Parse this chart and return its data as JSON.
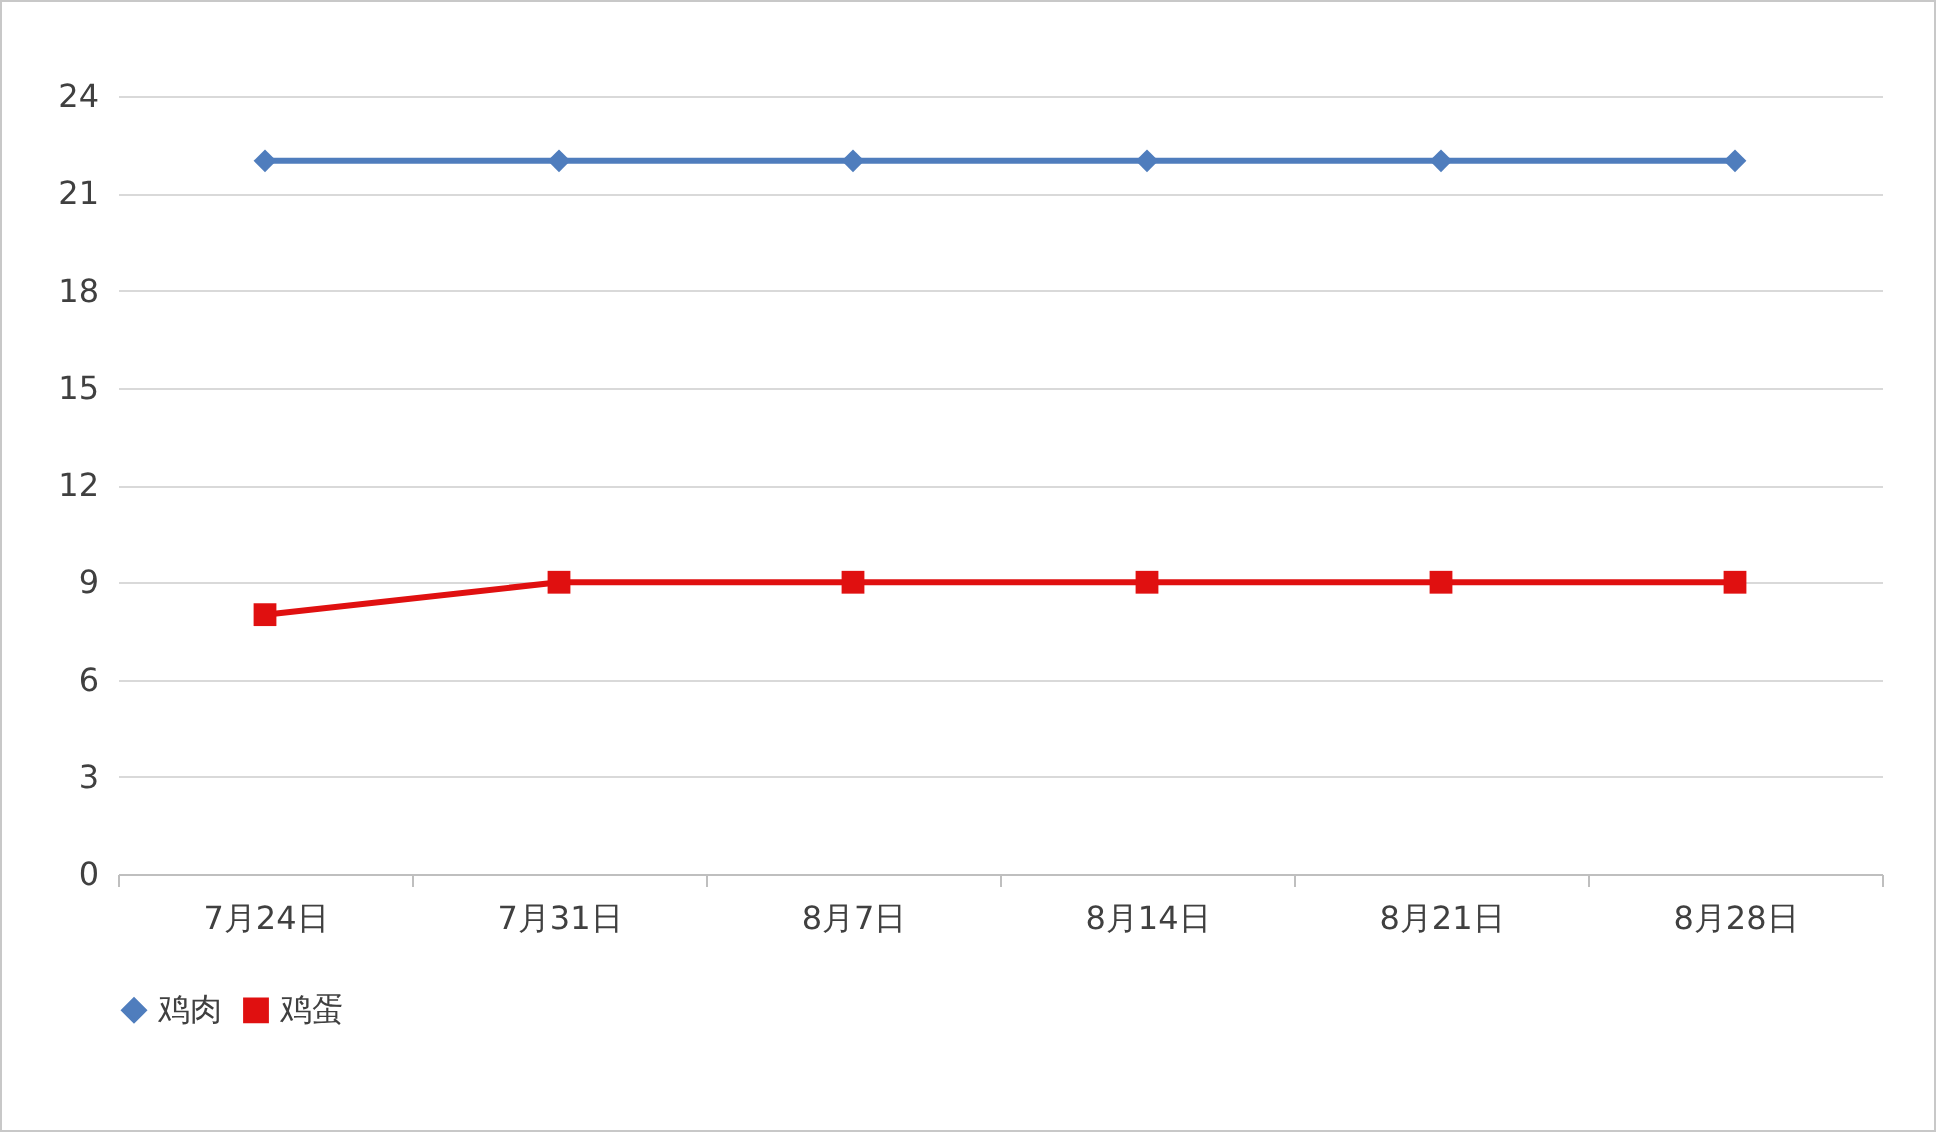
{
  "chart_data": {
    "type": "line",
    "categories": [
      "7月24日",
      "7月31日",
      "8月7日",
      "8月14日",
      "8月21日",
      "8月28日"
    ],
    "series": [
      {
        "name": "鸡肉",
        "color": "#4f7dbd",
        "marker": "diamond",
        "values": [
          22,
          22,
          22,
          22,
          22,
          22
        ]
      },
      {
        "name": "鸡蛋",
        "color": "#e01010",
        "marker": "square",
        "values": [
          8,
          9,
          9,
          9,
          9,
          9
        ]
      }
    ],
    "ylim": [
      0,
      24
    ],
    "yticks": [
      0,
      3,
      6,
      9,
      12,
      15,
      18,
      21,
      24
    ],
    "grid": "y",
    "legend": "bottom",
    "line_style": "solid"
  }
}
